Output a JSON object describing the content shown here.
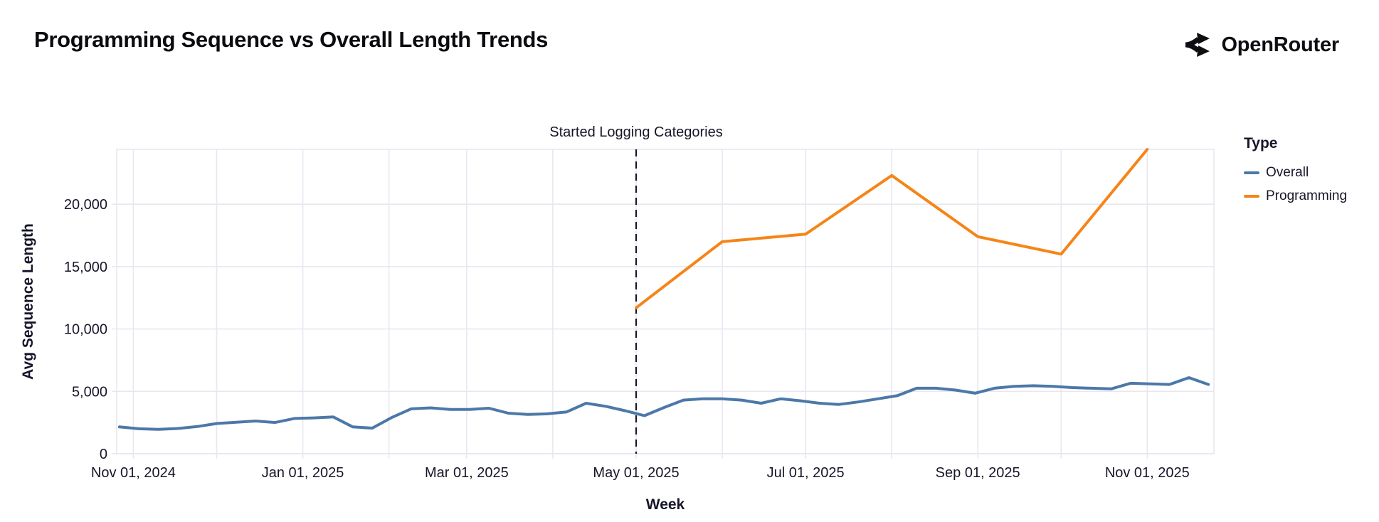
{
  "header": {
    "title": "Programming Sequence vs Overall Length Trends",
    "brand": "OpenRouter"
  },
  "legend": {
    "title": "Type"
  },
  "colors": {
    "background": "#ffffff",
    "text": "#16162a",
    "title_text": "#0a0a0f",
    "grid": "#e8e7f0",
    "dashed_rule": "#16162a",
    "overall": "#4c78a8",
    "programming": "#f58518"
  },
  "chart_data": {
    "type": "line",
    "title": "Programming Sequence vs Overall Length Trends",
    "xlabel": "Week",
    "ylabel": "Avg Sequence Length",
    "legend_title": "Type",
    "legend_position": "right",
    "grid": true,
    "annotation": {
      "label": "Started Logging Categories",
      "date": "2025-05-01"
    },
    "xlim": [
      "2024-10-26",
      "2025-11-25"
    ],
    "ylim": [
      0,
      24400
    ],
    "x_gridline_dates": [
      "2024-11-01",
      "2024-12-01",
      "2025-01-01",
      "2025-02-01",
      "2025-03-01",
      "2025-04-01",
      "2025-05-01",
      "2025-06-01",
      "2025-07-01",
      "2025-08-01",
      "2025-09-01",
      "2025-10-01",
      "2025-11-01"
    ],
    "x_ticks": [
      {
        "date": "2024-11-01",
        "label": "Nov 01, 2024"
      },
      {
        "date": "2025-01-01",
        "label": "Jan 01, 2025"
      },
      {
        "date": "2025-03-01",
        "label": "Mar 01, 2025"
      },
      {
        "date": "2025-05-01",
        "label": "May 01, 2025"
      },
      {
        "date": "2025-07-01",
        "label": "Jul 01, 2025"
      },
      {
        "date": "2025-09-01",
        "label": "Sep 01, 2025"
      },
      {
        "date": "2025-11-01",
        "label": "Nov 01, 2025"
      }
    ],
    "y_ticks": [
      {
        "value": 0,
        "label": "0"
      },
      {
        "value": 5000,
        "label": "5,000"
      },
      {
        "value": 10000,
        "label": "10,000"
      },
      {
        "value": 15000,
        "label": "15,000"
      },
      {
        "value": 20000,
        "label": "20,000"
      }
    ],
    "series": [
      {
        "name": "Overall",
        "color": "#4c78a8",
        "dates": [
          "2024-10-27",
          "2024-11-03",
          "2024-11-10",
          "2024-11-17",
          "2024-11-24",
          "2024-12-01",
          "2024-12-08",
          "2024-12-15",
          "2024-12-22",
          "2024-12-29",
          "2025-01-05",
          "2025-01-12",
          "2025-01-19",
          "2025-01-26",
          "2025-02-02",
          "2025-02-09",
          "2025-02-16",
          "2025-02-23",
          "2025-03-02",
          "2025-03-09",
          "2025-03-16",
          "2025-03-23",
          "2025-03-30",
          "2025-04-06",
          "2025-04-13",
          "2025-04-20",
          "2025-04-27",
          "2025-05-04",
          "2025-05-11",
          "2025-05-18",
          "2025-05-25",
          "2025-06-01",
          "2025-06-08",
          "2025-06-15",
          "2025-06-22",
          "2025-06-29",
          "2025-07-06",
          "2025-07-13",
          "2025-07-20",
          "2025-07-27",
          "2025-08-03",
          "2025-08-10",
          "2025-08-17",
          "2025-08-24",
          "2025-08-31",
          "2025-09-07",
          "2025-09-14",
          "2025-09-21",
          "2025-09-28",
          "2025-10-05",
          "2025-10-12",
          "2025-10-19",
          "2025-10-26",
          "2025-11-02",
          "2025-11-09",
          "2025-11-16",
          "2025-11-23"
        ],
        "values": [
          2150,
          2000,
          1950,
          2025,
          2175,
          2425,
          2525,
          2625,
          2500,
          2825,
          2875,
          2950,
          2150,
          2050,
          2900,
          3600,
          3675,
          3550,
          3550,
          3650,
          3250,
          3150,
          3200,
          3350,
          4050,
          3800,
          3450,
          3050,
          3700,
          4300,
          4400,
          4400,
          4300,
          4050,
          4400,
          4250,
          4050,
          3950,
          4150,
          4400,
          4650,
          5250,
          5250,
          5100,
          4850,
          5250,
          5400,
          5450,
          5400,
          5300,
          5250,
          5200,
          5650,
          5600,
          5550,
          6100,
          5550
        ]
      },
      {
        "name": "Programming",
        "color": "#f58518",
        "dates": [
          "2025-05-01",
          "2025-06-01",
          "2025-07-01",
          "2025-08-01",
          "2025-09-01",
          "2025-10-01",
          "2025-11-01"
        ],
        "values": [
          11700,
          17000,
          17600,
          22300,
          17400,
          16000,
          24400
        ]
      }
    ]
  }
}
